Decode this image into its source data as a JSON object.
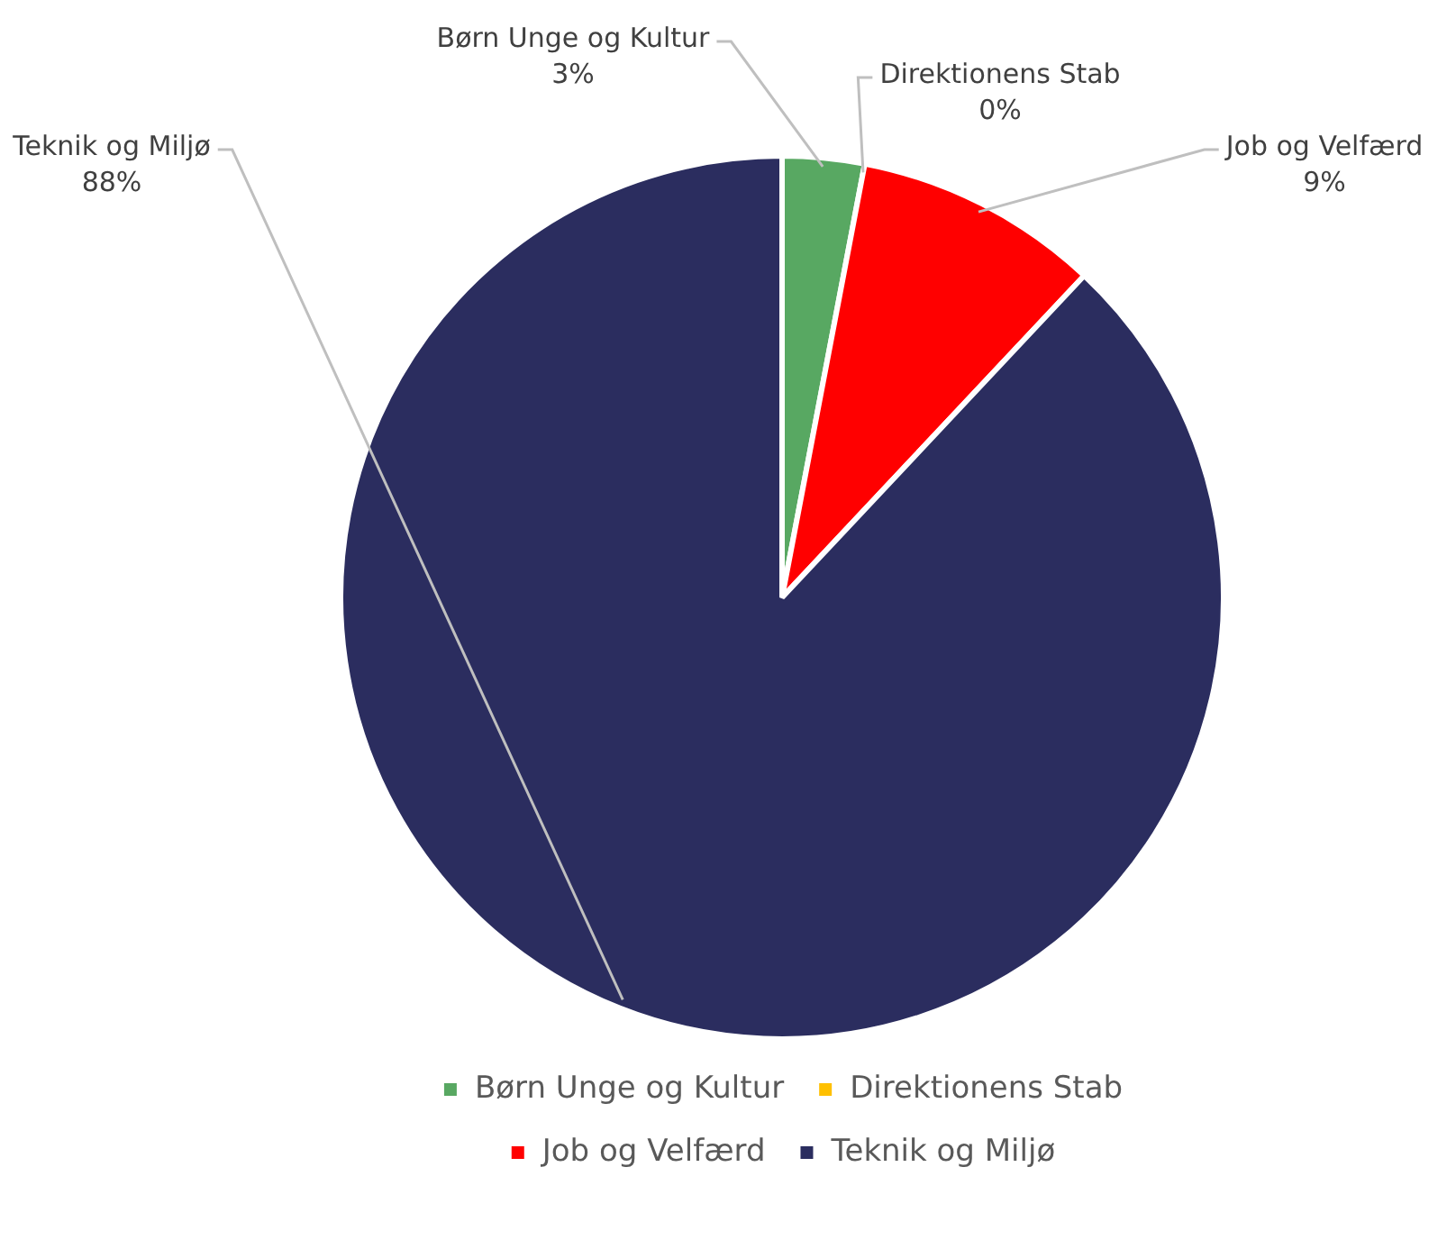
{
  "chart_data": {
    "type": "pie",
    "categories": [
      "Børn Unge og Kultur",
      "Direktionens Stab",
      "Job og Velfærd",
      "Teknik og Miljø"
    ],
    "values": [
      3,
      0,
      9,
      88
    ],
    "value_labels": [
      "3%",
      "0%",
      "9%",
      "88%"
    ],
    "colors": [
      "#58a862",
      "#ffc000",
      "#ff0000",
      "#2b2d5f"
    ],
    "legend": "bottom"
  }
}
